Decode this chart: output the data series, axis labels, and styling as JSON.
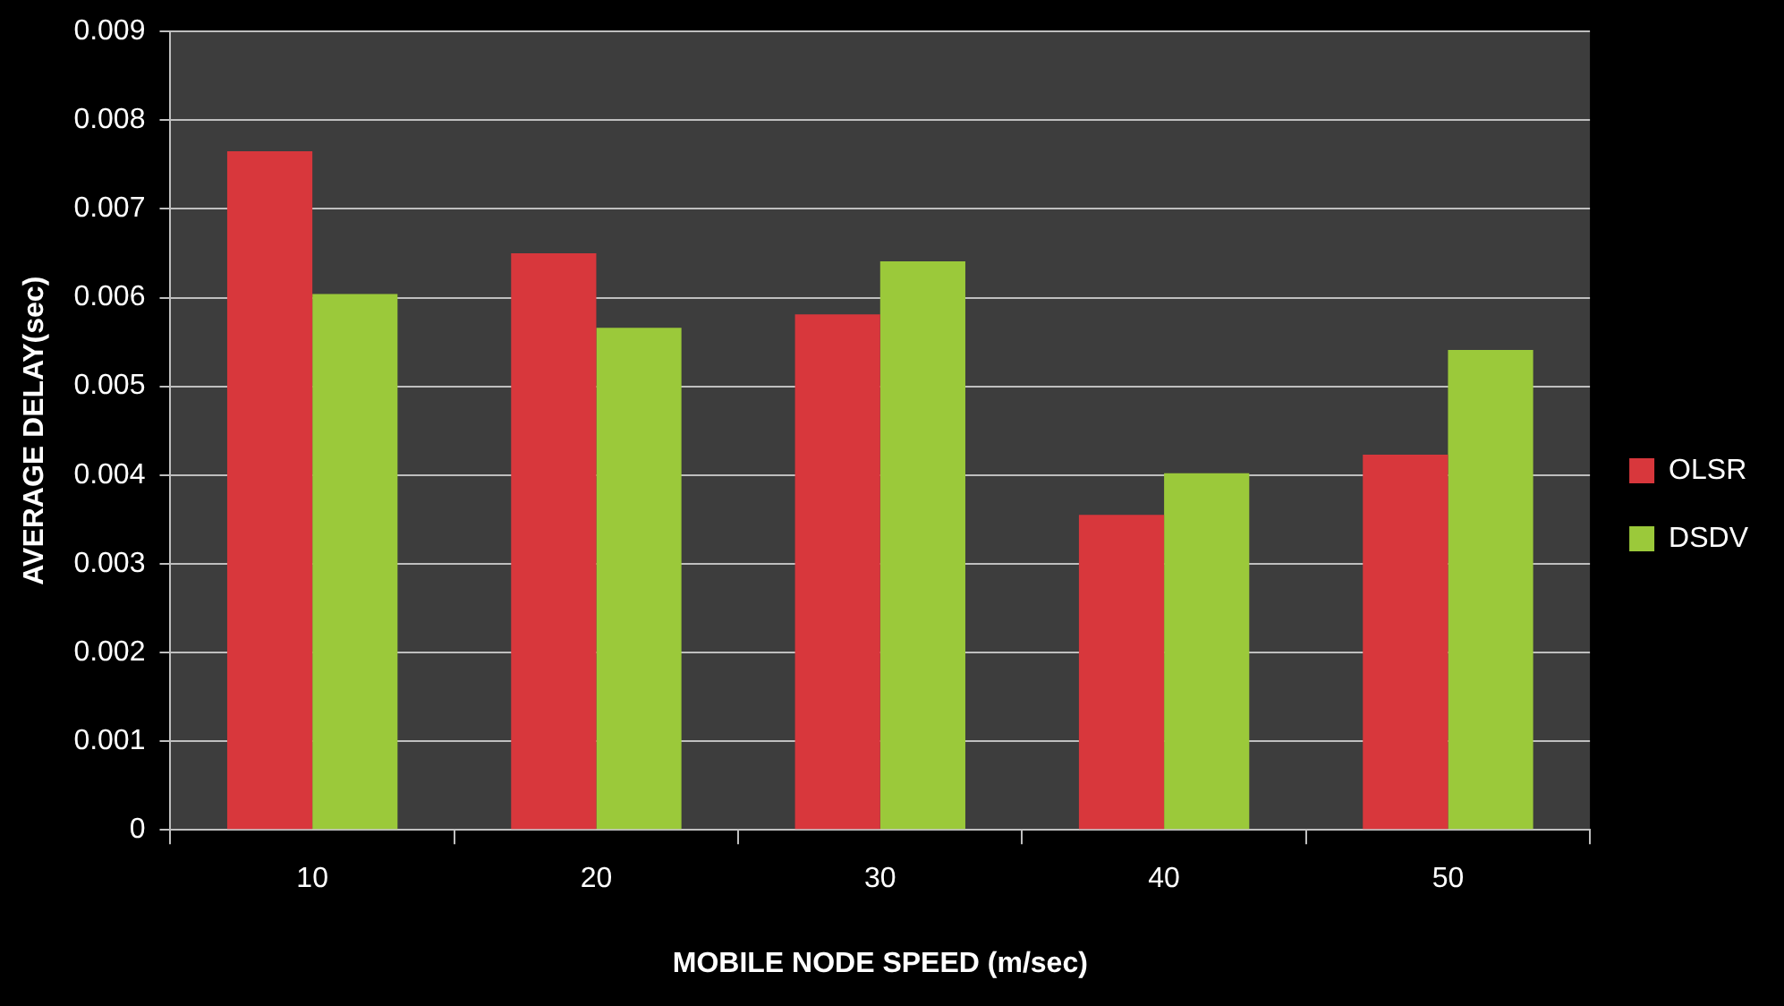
{
  "chart_data": {
    "type": "bar",
    "xlabel": "MOBILE NODE SPEED (m/sec)",
    "ylabel": "AVERAGE DELAY(sec)",
    "categories": [
      "10",
      "20",
      "30",
      "40",
      "50"
    ],
    "series": [
      {
        "name": "OLSR",
        "color": "#d8373c",
        "values": [
          0.00765,
          0.0065,
          0.00581,
          0.00355,
          0.00423
        ]
      },
      {
        "name": "DSDV",
        "color": "#9bc93a",
        "values": [
          0.00604,
          0.00566,
          0.00641,
          0.00402,
          0.00541
        ]
      }
    ],
    "ylim": [
      0,
      0.009
    ],
    "yticks": [
      0,
      0.001,
      0.002,
      0.003,
      0.004,
      0.005,
      0.006,
      0.007,
      0.008,
      0.009
    ],
    "grid": "y",
    "legend": "right"
  }
}
